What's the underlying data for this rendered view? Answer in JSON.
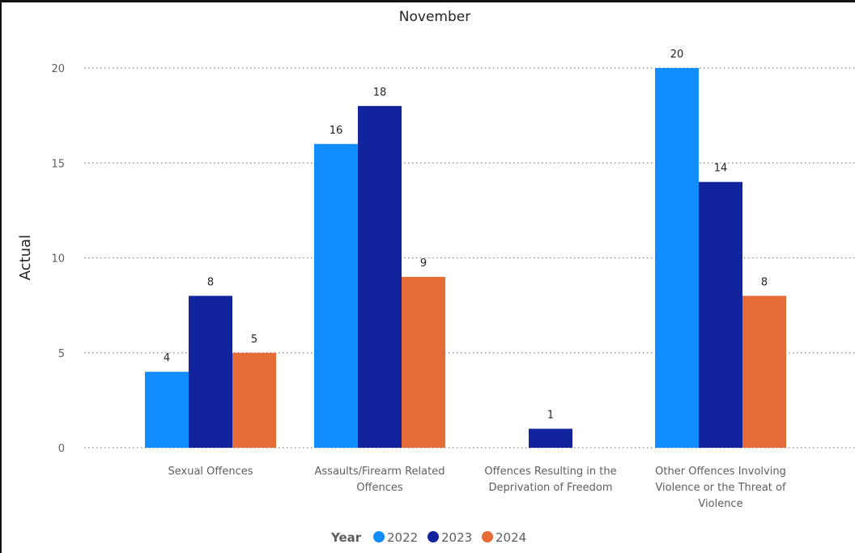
{
  "chart_data": {
    "type": "bar",
    "title": "November",
    "xlabel": "",
    "ylabel": "Actual",
    "ylim": [
      0,
      20
    ],
    "yticks": [
      0,
      5,
      10,
      15,
      20
    ],
    "grid": true,
    "legend": {
      "title": "Year",
      "position": "bottom-center"
    },
    "categories": [
      [
        "Sexual Offences"
      ],
      [
        "Assaults/Firearm Related",
        "Offences"
      ],
      [
        "Offences Resulting in the",
        "Deprivation of Freedom"
      ],
      [
        "Other Offences Involving",
        "Violence or the Threat of",
        "Violence"
      ]
    ],
    "series": [
      {
        "name": "2022",
        "color": "#118dff",
        "values": [
          4,
          16,
          null,
          20
        ]
      },
      {
        "name": "2023",
        "color": "#12239e",
        "values": [
          8,
          18,
          1,
          14
        ]
      },
      {
        "name": "2024",
        "color": "#e66c37",
        "values": [
          5,
          9,
          null,
          8
        ]
      }
    ]
  }
}
